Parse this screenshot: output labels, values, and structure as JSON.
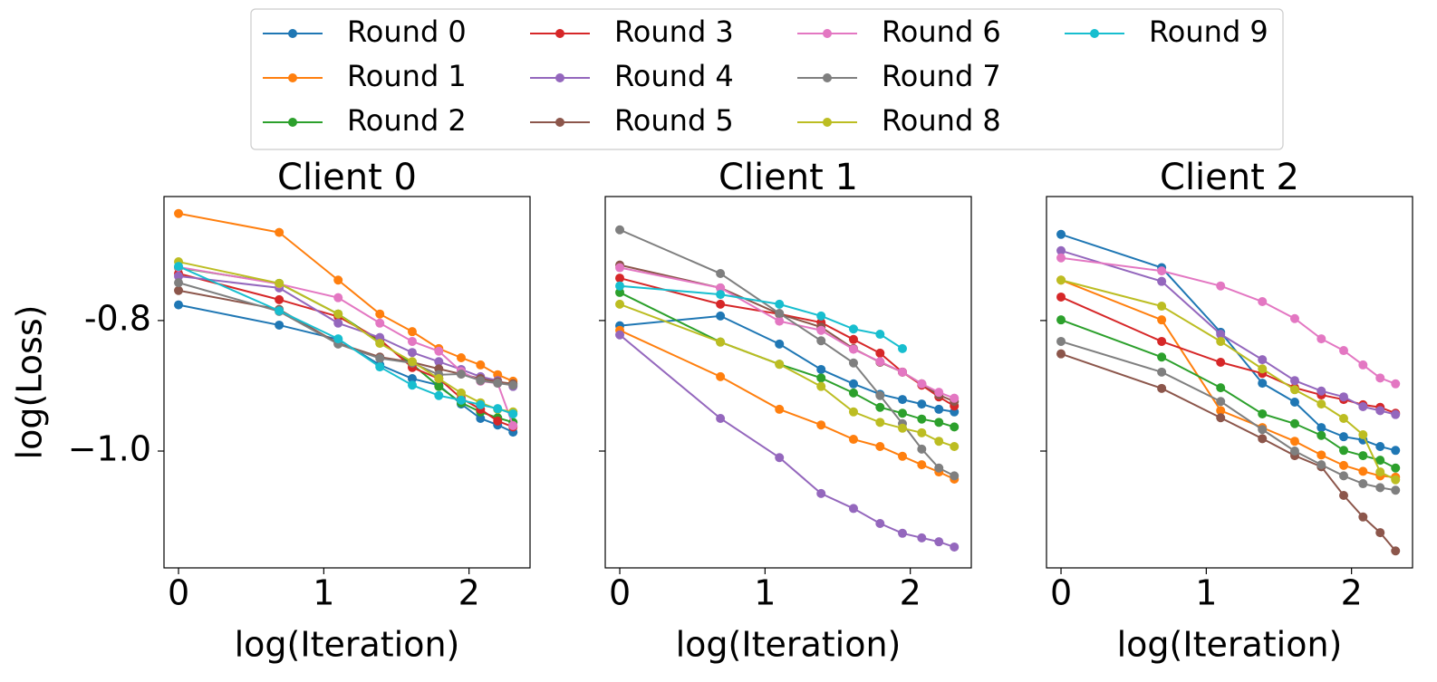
{
  "chart_data": [
    {
      "type": "line",
      "title": "Client 0",
      "xlabel": "log(Iteration)",
      "ylabel": "log(Loss)",
      "x": [
        0,
        0.693,
        1.099,
        1.386,
        1.609,
        1.792,
        1.946,
        2.079,
        2.197,
        2.303
      ],
      "xlim": [
        -0.1,
        2.42
      ],
      "ylim": [
        -1.179,
        -0.61
      ],
      "xticks": [
        0,
        1,
        2
      ],
      "yticks": [
        -0.8,
        {
          "value": -1.0,
          "label": "−1.0"
        }
      ],
      "series": [
        {
          "name": "Round 0",
          "color": "#1f77b4",
          "values": [
            -0.776,
            -0.807,
            -0.829,
            -0.868,
            -0.889,
            -0.899,
            -0.928,
            -0.95,
            -0.96,
            -0.971
          ]
        },
        {
          "name": "Round 1",
          "color": "#ff7f0e",
          "values": [
            -0.636,
            -0.665,
            -0.738,
            -0.79,
            -0.817,
            -0.843,
            -0.857,
            -0.868,
            -0.883,
            -0.893
          ]
        },
        {
          "name": "Round 2",
          "color": "#2ca02c",
          "values": [
            -0.719,
            -0.743,
            -0.79,
            -0.832,
            -0.867,
            -0.901,
            -0.926,
            -0.94,
            -0.949,
            -0.956
          ]
        },
        {
          "name": "Round 3",
          "color": "#d62728",
          "values": [
            -0.728,
            -0.768,
            -0.794,
            -0.829,
            -0.872,
            -0.889,
            -0.919,
            -0.936,
            -0.954,
            -0.963
          ]
        },
        {
          "name": "Round 4",
          "color": "#9467bd",
          "values": [
            -0.732,
            -0.75,
            -0.804,
            -0.826,
            -0.849,
            -0.863,
            -0.875,
            -0.886,
            -0.892,
            -0.901
          ]
        },
        {
          "name": "Round 5",
          "color": "#8c564b",
          "values": [
            -0.754,
            -0.783,
            -0.835,
            -0.856,
            -0.864,
            -0.874,
            -0.882,
            -0.889,
            -0.894,
            -0.897
          ]
        },
        {
          "name": "Round 6",
          "color": "#e377c2",
          "values": [
            -0.718,
            -0.744,
            -0.765,
            -0.804,
            -0.832,
            -0.847,
            -0.878,
            -0.893,
            -0.896,
            -0.961
          ]
        },
        {
          "name": "Round 7",
          "color": "#7f7f7f",
          "values": [
            -0.742,
            -0.786,
            -0.836,
            -0.858,
            -0.865,
            -0.883,
            -0.882,
            -0.892,
            -0.896,
            -0.899
          ]
        },
        {
          "name": "Round 8",
          "color": "#bcbd22",
          "values": [
            -0.71,
            -0.743,
            -0.79,
            -0.835,
            -0.863,
            -0.889,
            -0.911,
            -0.926,
            -0.936,
            -0.94
          ]
        },
        {
          "name": "Round 9",
          "color": "#17becf",
          "values": [
            -0.717,
            -0.785,
            -0.828,
            -0.871,
            -0.899,
            -0.915,
            -0.922,
            -0.929,
            -0.935,
            -0.943
          ]
        }
      ]
    },
    {
      "type": "line",
      "title": "Client 1",
      "xlabel": "log(Iteration)",
      "x": [
        0,
        0.693,
        1.099,
        1.386,
        1.609,
        1.792,
        1.946,
        2.079,
        2.197,
        2.303
      ],
      "xlim": [
        -0.1,
        2.42
      ],
      "ylim": [
        -1.179,
        -0.61
      ],
      "xticks": [
        0,
        1,
        2
      ],
      "yticks": [
        -0.8,
        -1.0
      ],
      "series": [
        {
          "values": [
            -0.808,
            -0.793,
            -0.836,
            -0.875,
            -0.897,
            -0.913,
            -0.921,
            -0.928,
            -0.936,
            -0.94
          ]
        },
        {
          "values": [
            -0.815,
            -0.886,
            -0.936,
            -0.96,
            -0.982,
            -0.993,
            -1.008,
            -1.021,
            -1.032,
            -1.043
          ]
        },
        {
          "values": [
            -0.757,
            -0.833,
            -0.867,
            -0.888,
            -0.911,
            -0.933,
            -0.942,
            -0.951,
            -0.956,
            -0.963
          ]
        },
        {
          "values": [
            -0.735,
            -0.775,
            -0.79,
            -0.803,
            -0.829,
            -0.85,
            -0.879,
            -0.899,
            -0.917,
            -0.931
          ]
        },
        {
          "values": [
            -0.822,
            -0.95,
            -1.01,
            -1.065,
            -1.088,
            -1.111,
            -1.126,
            -1.133,
            -1.139,
            -1.147
          ]
        },
        {
          "values": [
            -0.715,
            -0.75,
            -0.79,
            -0.81,
            -0.843,
            -0.864,
            -0.879,
            -0.897,
            -0.914,
            -0.924
          ]
        },
        {
          "values": [
            -0.719,
            -0.75,
            -0.801,
            -0.815,
            -0.844,
            -0.863,
            -0.879,
            -0.897,
            -0.91,
            -0.919
          ]
        },
        {
          "values": [
            -0.661,
            -0.728,
            -0.789,
            -0.831,
            -0.865,
            -0.915,
            -0.958,
            -0.997,
            -1.026,
            -1.038
          ]
        },
        {
          "values": [
            -0.775,
            -0.833,
            -0.867,
            -0.901,
            -0.94,
            -0.956,
            -0.965,
            -0.972,
            -0.985,
            -0.993
          ]
        },
        {
          "values": [
            -0.747,
            -0.76,
            -0.775,
            -0.793,
            -0.813,
            -0.821,
            -0.843,
            null,
            null,
            null
          ]
        }
      ]
    },
    {
      "type": "line",
      "title": "Client 2",
      "xlabel": "log(Iteration)",
      "x": [
        0,
        0.693,
        1.099,
        1.386,
        1.609,
        1.792,
        1.946,
        2.079,
        2.197,
        2.303
      ],
      "xlim": [
        -0.1,
        2.42
      ],
      "ylim": [
        -1.179,
        -0.61
      ],
      "xticks": [
        0,
        1,
        2
      ],
      "yticks": [
        -0.8,
        -1.0
      ],
      "series": [
        {
          "values": [
            -0.668,
            -0.719,
            -0.818,
            -0.896,
            -0.925,
            -0.964,
            -0.978,
            -0.983,
            -0.993,
            -0.999
          ]
        },
        {
          "values": [
            -0.738,
            -0.799,
            -0.938,
            -0.964,
            -0.985,
            -1.006,
            -1.022,
            -1.031,
            -1.038,
            -1.04
          ]
        },
        {
          "values": [
            -0.799,
            -0.856,
            -0.903,
            -0.943,
            -0.958,
            -0.976,
            -0.999,
            -1.007,
            -1.014,
            -1.026
          ]
        },
        {
          "values": [
            -0.764,
            -0.832,
            -0.864,
            -0.881,
            -0.903,
            -0.914,
            -0.921,
            -0.929,
            -0.933,
            -0.942
          ]
        },
        {
          "values": [
            -0.693,
            -0.74,
            -0.821,
            -0.86,
            -0.892,
            -0.908,
            -0.917,
            -0.932,
            -0.938,
            -0.944
          ]
        },
        {
          "values": [
            -0.851,
            -0.904,
            -0.949,
            -0.981,
            -1.007,
            -1.024,
            -1.068,
            -1.101,
            -1.125,
            -1.153
          ]
        },
        {
          "values": [
            -0.704,
            -0.724,
            -0.747,
            -0.771,
            -0.797,
            -0.828,
            -0.846,
            -0.868,
            -0.888,
            -0.897
          ]
        },
        {
          "values": [
            -0.832,
            -0.879,
            -0.924,
            -0.967,
            -1.0,
            -1.021,
            -1.038,
            -1.05,
            -1.056,
            -1.06
          ]
        },
        {
          "values": [
            -0.738,
            -0.778,
            -0.832,
            -0.874,
            -0.906,
            -0.928,
            -0.95,
            -0.975,
            -1.032,
            -1.044
          ]
        }
      ]
    }
  ]
}
